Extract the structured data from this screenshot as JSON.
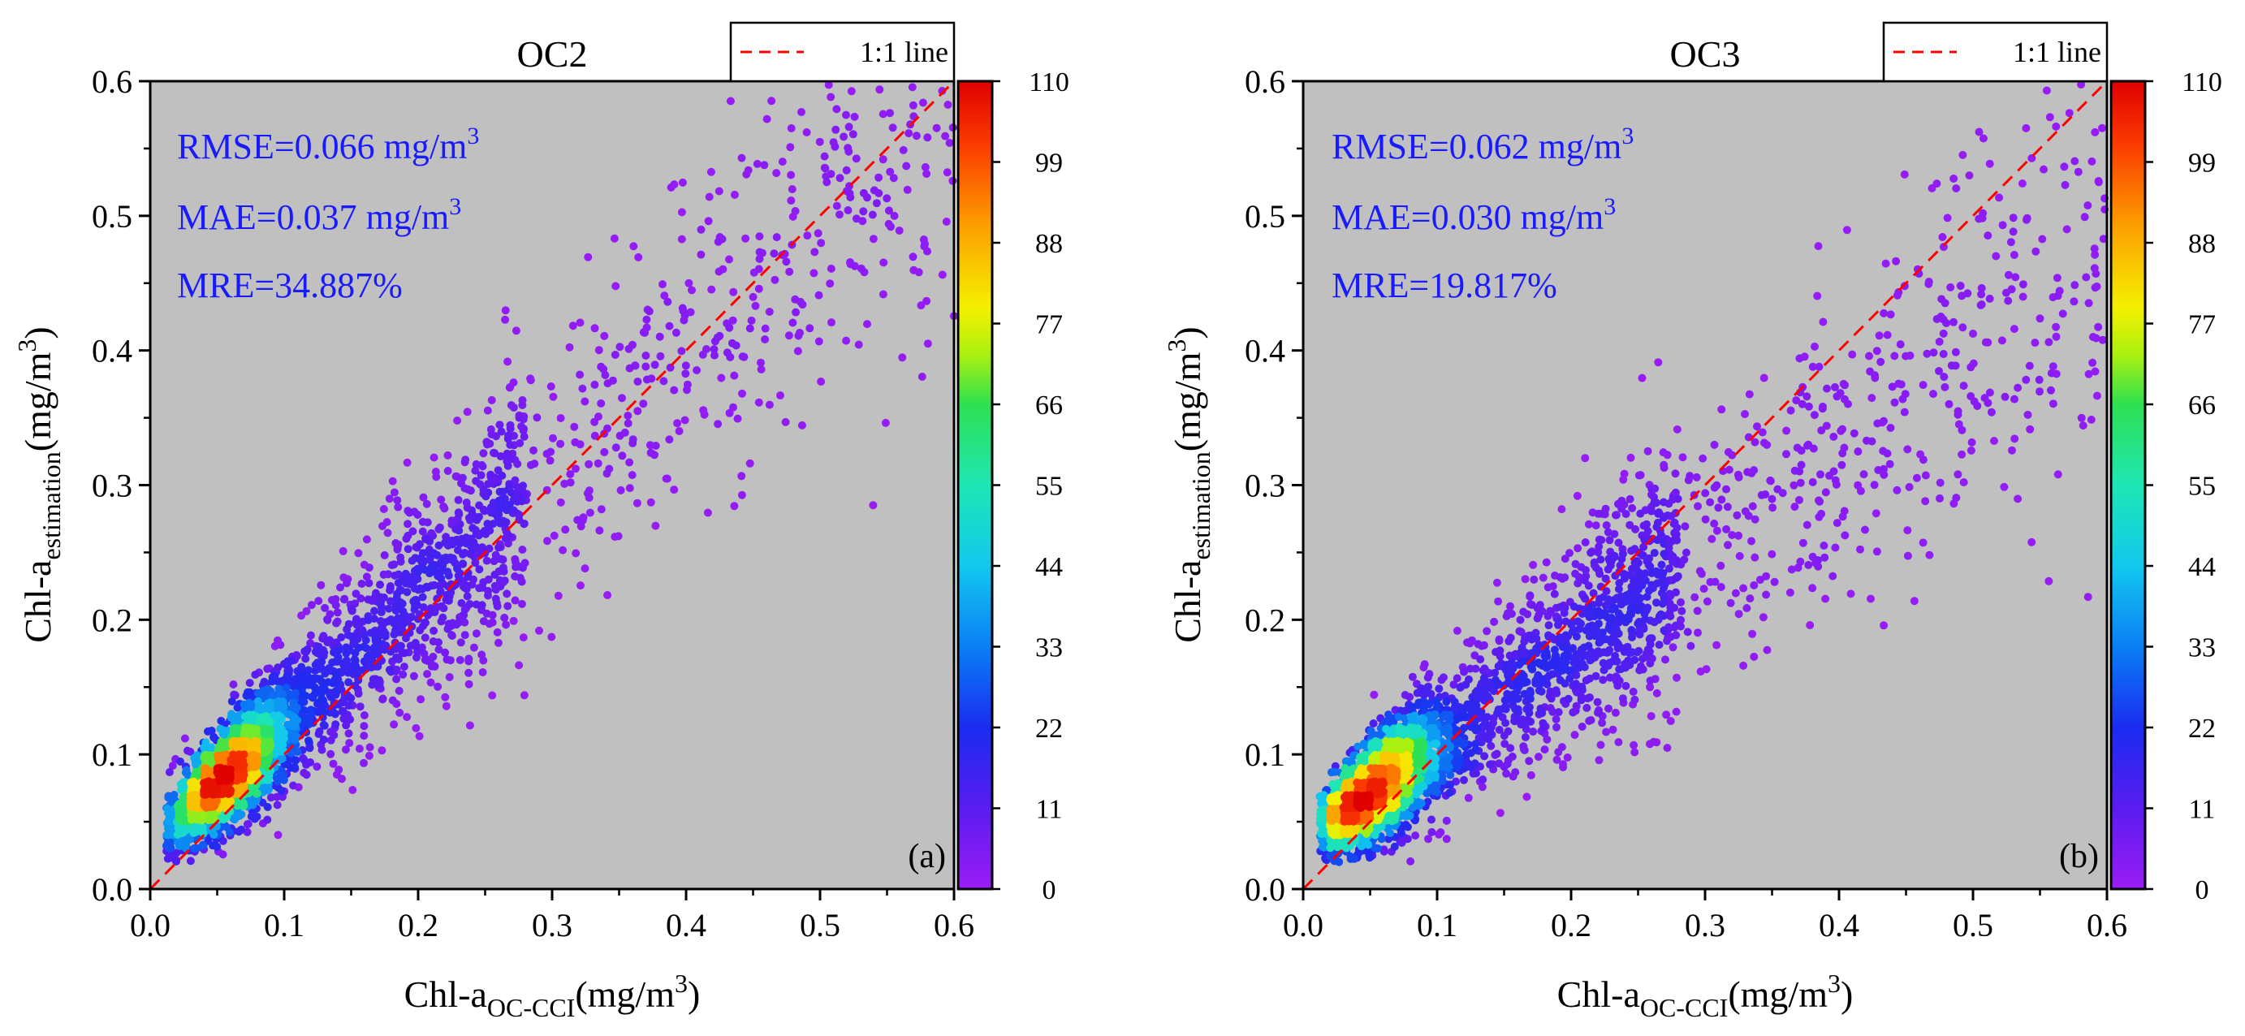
{
  "chart_data": [
    {
      "type": "scatter",
      "panel_label": "(a)",
      "title": "OC2",
      "xlabel": {
        "main": "Chl-a",
        "sub": "OC-CCI",
        "unit": "(mg/m",
        "unit_sup": "3",
        "unit_close": ")"
      },
      "ylabel": {
        "main": "Chl-a",
        "sub": "estimation",
        "unit": "(mg/m",
        "unit_sup": "3",
        "unit_close": ")"
      },
      "xlim": [
        0.0,
        0.6
      ],
      "ylim": [
        0.0,
        0.6
      ],
      "xticks": [
        "0.0",
        "0.1",
        "0.2",
        "0.3",
        "0.4",
        "0.5",
        "0.6"
      ],
      "yticks": [
        "0.0",
        "0.1",
        "0.2",
        "0.3",
        "0.4",
        "0.5",
        "0.6"
      ],
      "xtick_values": [
        0.0,
        0.1,
        0.2,
        0.3,
        0.4,
        0.5,
        0.6
      ],
      "ytick_values": [
        0.0,
        0.1,
        0.2,
        0.3,
        0.4,
        0.5,
        0.6
      ],
      "stats": [
        {
          "text": "RMSE=0.066 mg/m",
          "sup": "3"
        },
        {
          "text": "MAE=0.037 mg/m",
          "sup": "3"
        },
        {
          "text": "MRE=34.887%",
          "sup": ""
        }
      ],
      "legend": {
        "label": "1:1 line",
        "line_color": "#ff0000"
      },
      "colorbar": {
        "min": 0,
        "max": 110,
        "ticks": [
          "0",
          "11",
          "22",
          "33",
          "44",
          "55",
          "66",
          "77",
          "88",
          "99",
          "110"
        ]
      },
      "scatter_model": {
        "slope": 0.93,
        "intercept": 0.032,
        "noise_scale": 0.13,
        "noise_base": 0.012,
        "x_mode": 0.055,
        "count": 3600
      },
      "background_color": "#c0c0c0"
    },
    {
      "type": "scatter",
      "panel_label": "(b)",
      "title": "OC3",
      "xlabel": {
        "main": "Chl-a",
        "sub": "OC-CCI",
        "unit": "(mg/m",
        "unit_sup": "3",
        "unit_close": ")"
      },
      "ylabel": {
        "main": "Chl-a",
        "sub": "estimation",
        "unit": "(mg/m",
        "unit_sup": "3",
        "unit_close": ")"
      },
      "xlim": [
        0.0,
        0.6
      ],
      "ylim": [
        0.0,
        0.6
      ],
      "xticks": [
        "0.0",
        "0.1",
        "0.2",
        "0.3",
        "0.4",
        "0.5",
        "0.6"
      ],
      "yticks": [
        "0.0",
        "0.1",
        "0.2",
        "0.3",
        "0.4",
        "0.5",
        "0.6"
      ],
      "xtick_values": [
        0.0,
        0.1,
        0.2,
        0.3,
        0.4,
        0.5,
        0.6
      ],
      "ytick_values": [
        0.0,
        0.1,
        0.2,
        0.3,
        0.4,
        0.5,
        0.6
      ],
      "stats": [
        {
          "text": "RMSE=0.062 mg/m",
          "sup": "3"
        },
        {
          "text": "MAE=0.030 mg/m",
          "sup": "3"
        },
        {
          "text": "MRE=19.817%",
          "sup": ""
        }
      ],
      "legend": {
        "label": "1:1 line",
        "line_color": "#ff0000"
      },
      "colorbar": {
        "min": 0,
        "max": 110,
        "ticks": [
          "0",
          "11",
          "22",
          "33",
          "44",
          "55",
          "66",
          "77",
          "88",
          "99",
          "110"
        ]
      },
      "scatter_model": {
        "slope": 0.74,
        "intercept": 0.034,
        "noise_scale": 0.13,
        "noise_base": 0.012,
        "x_mode": 0.05,
        "count": 3600
      },
      "background_color": "#c0c0c0"
    }
  ]
}
